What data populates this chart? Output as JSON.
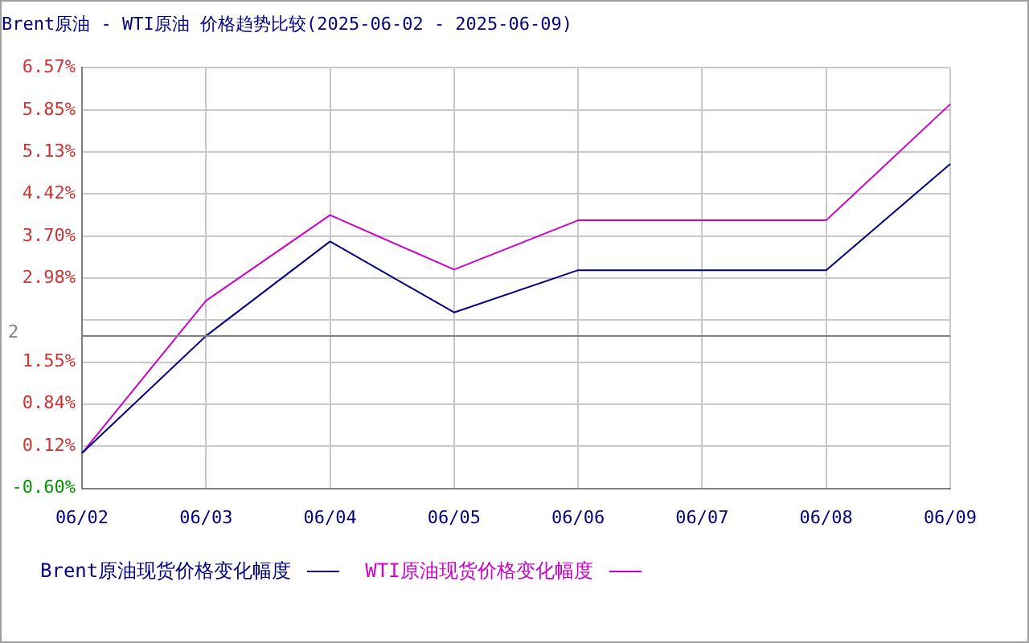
{
  "chart_data": {
    "type": "line",
    "title": "Brent原油 - WTI原油 价格趋势比较(2025-06-02 - 2025-06-09)",
    "categories": [
      "06/02",
      "06/03",
      "06/04",
      "06/05",
      "06/06",
      "06/07",
      "06/08",
      "06/09"
    ],
    "series": [
      {
        "name": "Brent原油现货价格变化幅度",
        "color": "#000080",
        "values": [
          0,
          2.0,
          3.61,
          2.4,
          3.12,
          3.12,
          3.12,
          4.93
        ]
      },
      {
        "name": "WTI原油现货价格变化幅度",
        "color": "#cc00cc",
        "values": [
          0,
          2.6,
          4.06,
          3.13,
          3.97,
          3.97,
          3.97,
          5.95
        ]
      }
    ],
    "ylim": [
      -0.6,
      6.57
    ],
    "yticks": [
      {
        "value": -0.6,
        "label": "-0.60%"
      },
      {
        "value": 0.12,
        "label": "0.12%"
      },
      {
        "value": 0.84,
        "label": "0.84%"
      },
      {
        "value": 1.55,
        "label": "1.55%"
      },
      {
        "value": 2.27,
        "label": null
      },
      {
        "value": 2.98,
        "label": "2.98%"
      },
      {
        "value": 3.7,
        "label": "3.70%"
      },
      {
        "value": 4.42,
        "label": "4.42%"
      },
      {
        "value": 5.13,
        "label": "5.13%"
      },
      {
        "value": 5.85,
        "label": "5.85%"
      },
      {
        "value": 6.57,
        "label": "6.57%"
      }
    ],
    "ref_lines": [
      {
        "axis": "y",
        "value": 2,
        "label": "2",
        "color": "#808080"
      }
    ],
    "grid": true,
    "legend": "bottom",
    "marker": "none",
    "line_style": "solid"
  }
}
